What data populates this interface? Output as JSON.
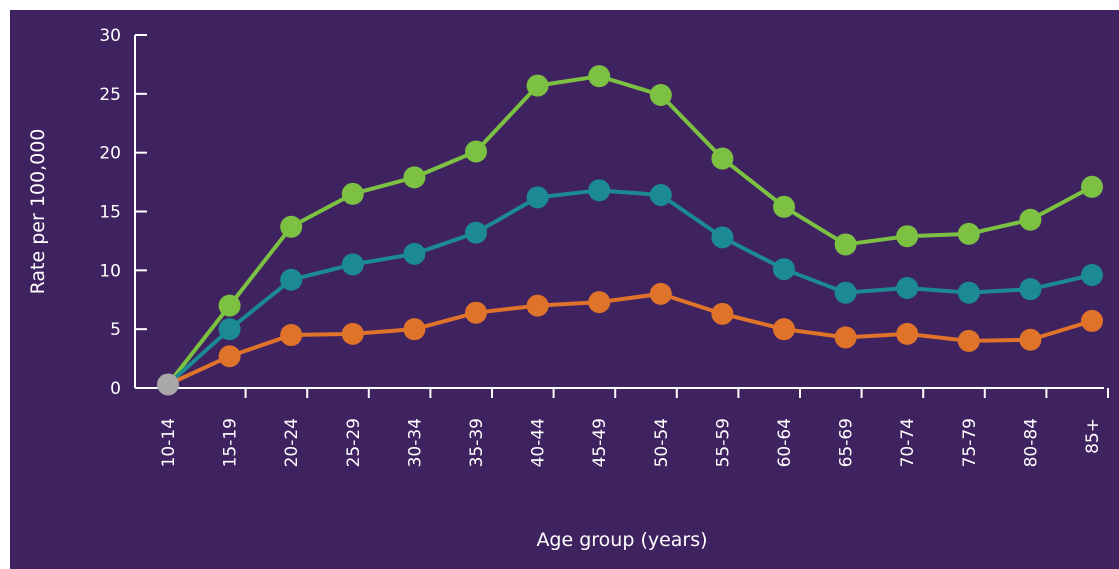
{
  "chart_data": {
    "type": "line",
    "title": "",
    "xlabel": "Age group (years)",
    "ylabel": "Rate per 100,000",
    "ylim": [
      0,
      30
    ],
    "yticks": [
      0,
      5,
      10,
      15,
      20,
      25,
      30
    ],
    "grid": false,
    "legend": "none",
    "background": "#3f2260",
    "categories": [
      "10-14",
      "15-19",
      "20-24",
      "25-29",
      "30-34",
      "35-39",
      "40-44",
      "45-49",
      "50-54",
      "55-59",
      "60-64",
      "65-69",
      "70-74",
      "75-79",
      "80-84",
      "85+"
    ],
    "series": [
      {
        "color": "#7cc142",
        "values": [
          0.3,
          7.0,
          13.7,
          16.5,
          17.9,
          20.1,
          25.7,
          26.5,
          24.9,
          19.5,
          15.4,
          12.2,
          12.9,
          13.1,
          14.3,
          17.1
        ]
      },
      {
        "color": "#1b8a93",
        "values": [
          0.3,
          5.0,
          9.2,
          10.5,
          11.4,
          13.2,
          16.2,
          16.8,
          16.4,
          12.8,
          10.1,
          8.1,
          8.5,
          8.1,
          8.4,
          9.6
        ]
      },
      {
        "color": "#e0732a",
        "values": [
          0.3,
          2.7,
          4.5,
          4.6,
          5.0,
          6.4,
          7.0,
          7.3,
          8.0,
          6.3,
          5.0,
          4.3,
          4.6,
          4.0,
          4.1,
          5.7
        ]
      }
    ],
    "origin_point_color": "#a8a8a8"
  }
}
